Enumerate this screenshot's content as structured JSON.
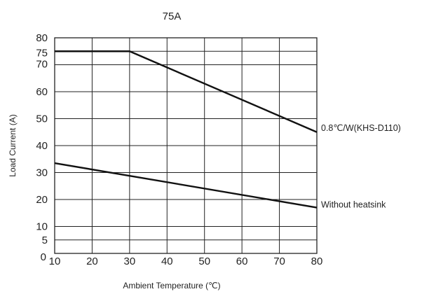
{
  "chart_data": {
    "type": "line",
    "title": "75A",
    "xlabel": "Ambient Temperature (℃)",
    "ylabel": "Load Current (A)",
    "xlim": [
      10,
      80
    ],
    "ylim": [
      0,
      80
    ],
    "x_ticks": [
      10,
      20,
      30,
      40,
      50,
      60,
      70,
      80
    ],
    "y_ticks": [
      0,
      5,
      10,
      20,
      30,
      40,
      50,
      60,
      70,
      75,
      80
    ],
    "grid": true,
    "legend": "none",
    "series": [
      {
        "name": "0.8℃/W(KHS-D110)",
        "x": [
          10,
          30,
          80
        ],
        "y": [
          75,
          75,
          45
        ]
      },
      {
        "name": "Without heatsink",
        "x": [
          10,
          80
        ],
        "y": [
          33.5,
          17
        ]
      }
    ]
  }
}
